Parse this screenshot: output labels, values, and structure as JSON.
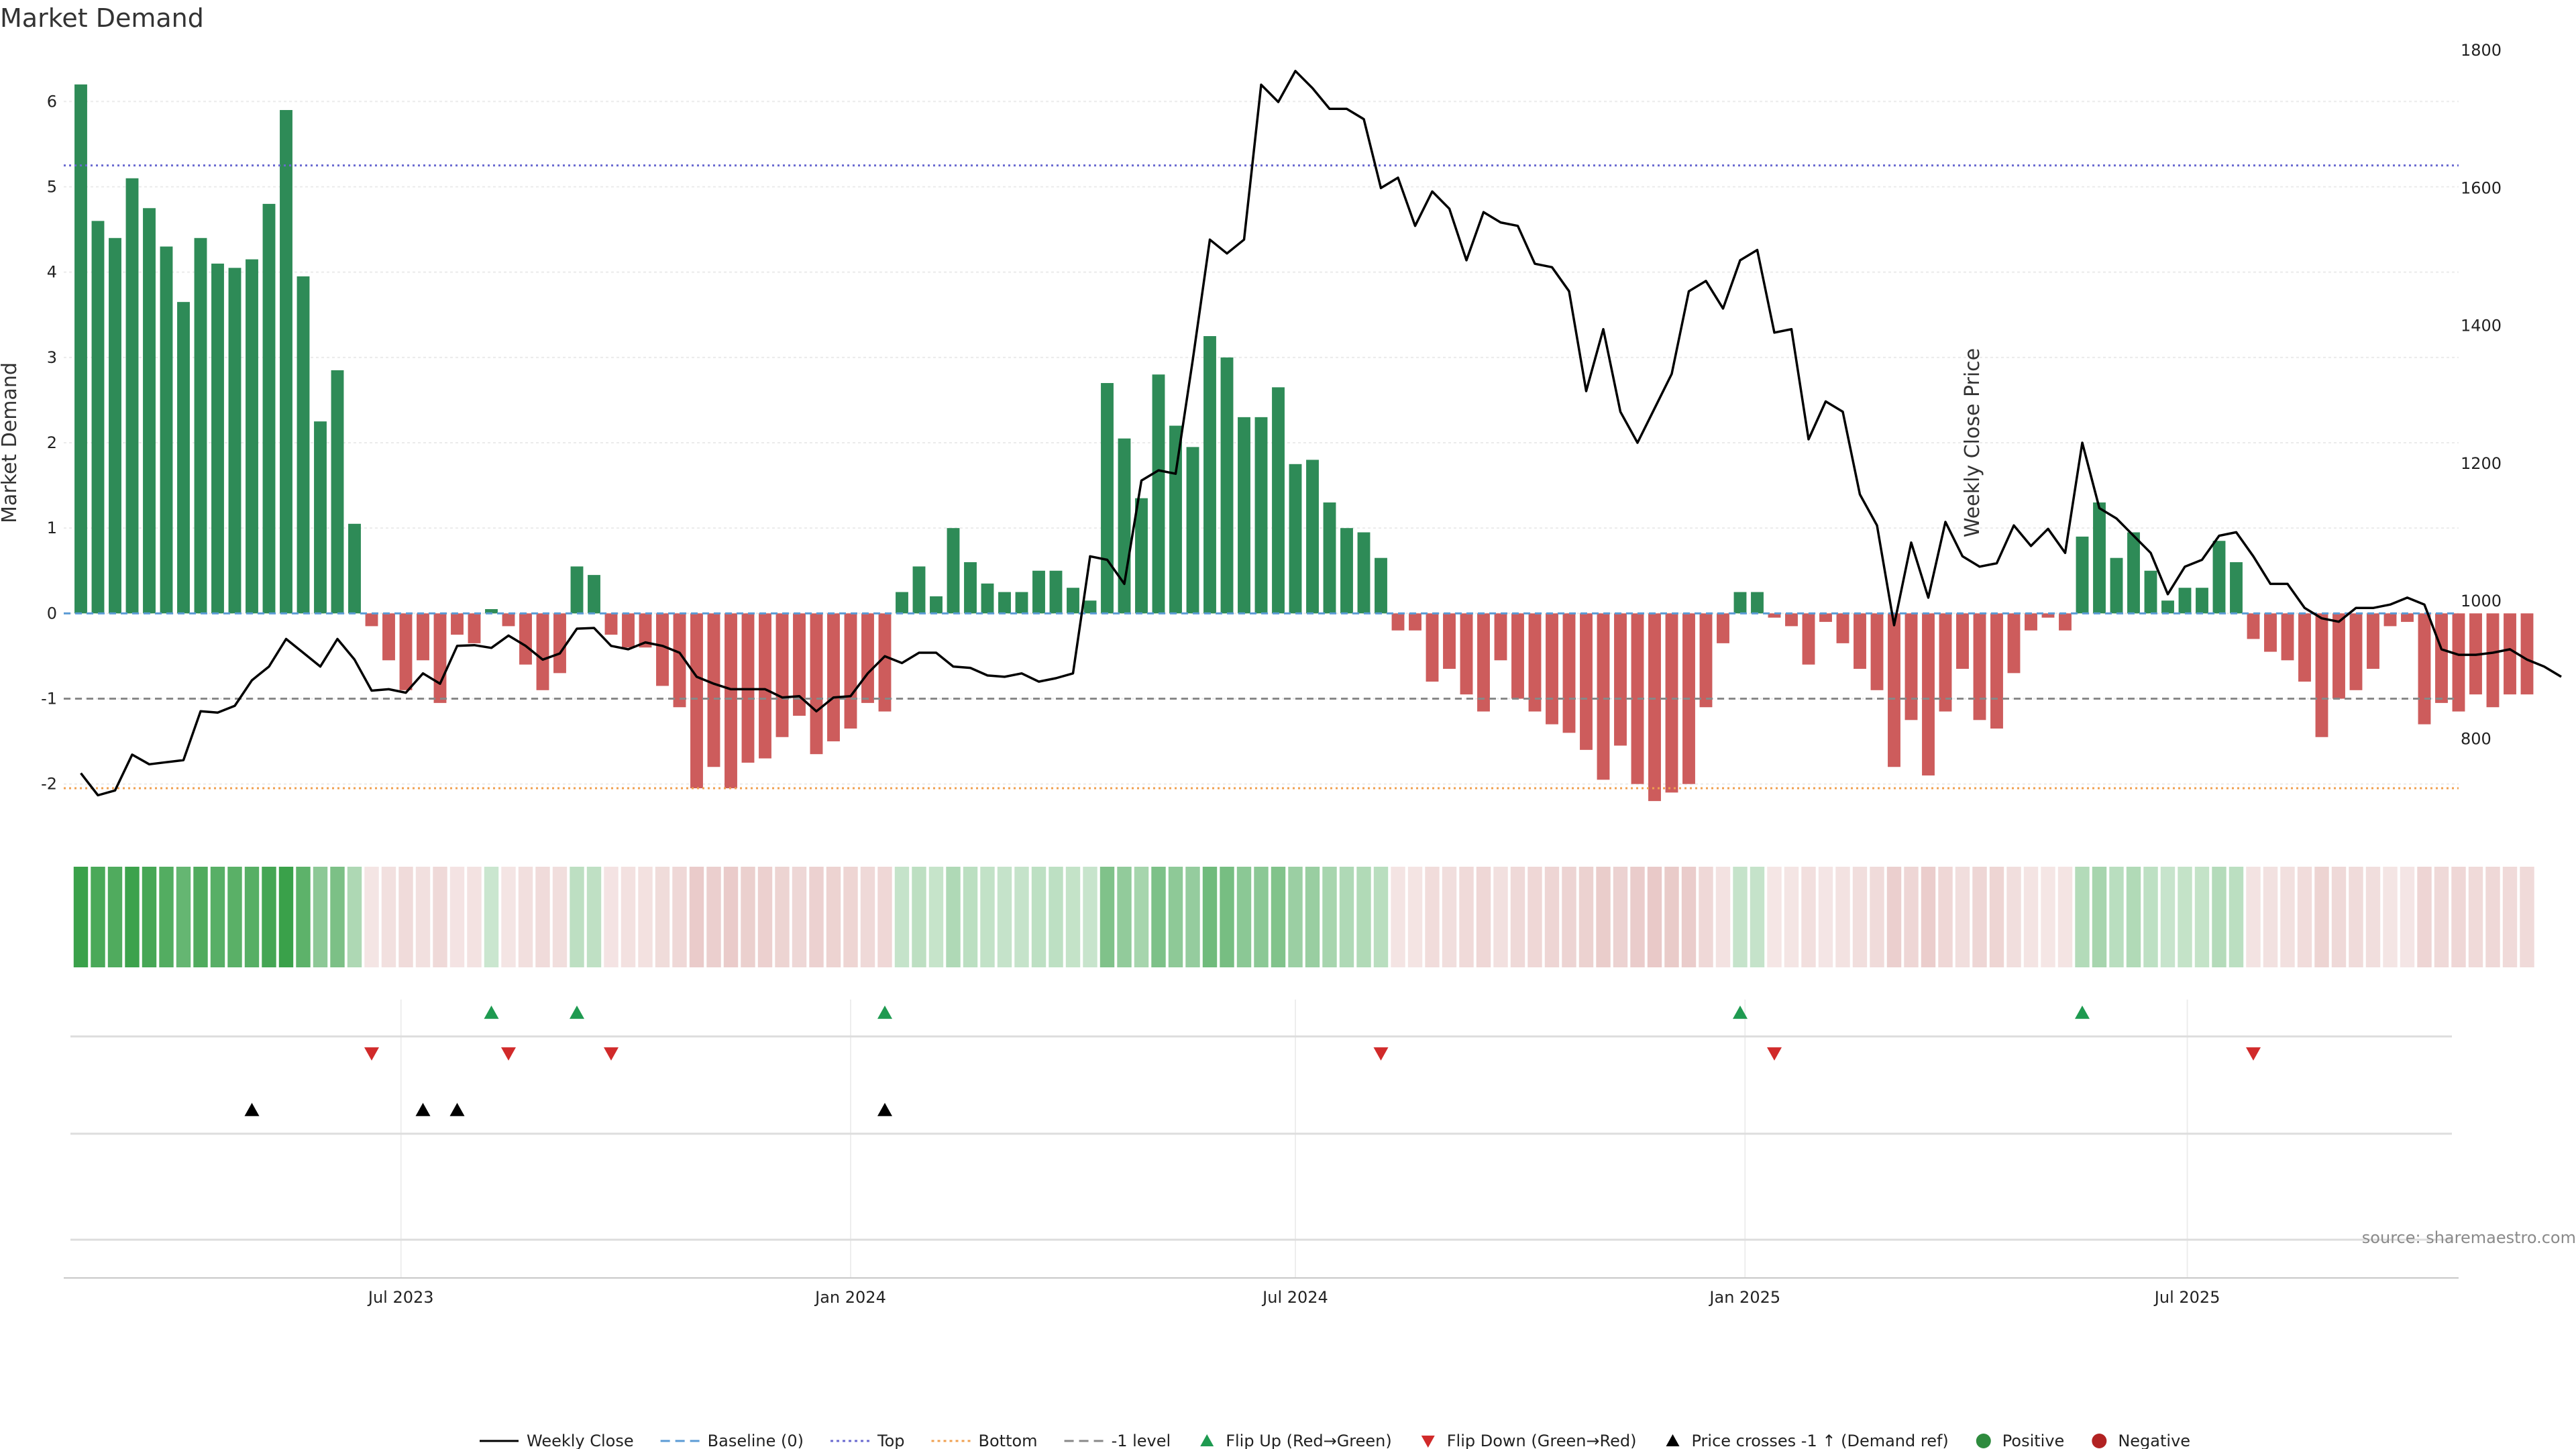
{
  "chart_data": {
    "type": "bar",
    "title": "Market Demand",
    "ylabel_left": "Market Demand",
    "ylabel_right": "Weekly Close Price",
    "source": "source: sharemaestro.com",
    "left_axis": {
      "range": [
        -2.6,
        6.6
      ],
      "ticks": [
        -2,
        -1,
        0,
        1,
        2,
        3,
        4,
        5,
        6
      ]
    },
    "right_axis": {
      "range": [
        660,
        1800
      ],
      "ticks": [
        800,
        1000,
        1200,
        1400,
        1600,
        1800
      ]
    },
    "x_range": [
      "2023-02-13",
      "2025-10-20"
    ],
    "x_ticks": [
      {
        "date": "2023-07-01",
        "label": "Jul 2023"
      },
      {
        "date": "2024-01-01",
        "label": "Jan 2024"
      },
      {
        "date": "2024-07-01",
        "label": "Jul 2024"
      },
      {
        "date": "2025-01-01",
        "label": "Jan 2025"
      },
      {
        "date": "2025-07-01",
        "label": "Jul 2025"
      }
    ],
    "first_week": "2023-02-20",
    "reference_lines": [
      {
        "name": "Baseline (0)",
        "value": 0,
        "color": "#5b9bd5",
        "style": "dashed"
      },
      {
        "name": "Top",
        "value": 5.25,
        "color": "#6a6ad0",
        "style": "dotted"
      },
      {
        "name": "Bottom",
        "value": -2.05,
        "color": "#f0a050",
        "style": "dotted"
      },
      {
        "name": "-1 level",
        "value": -1,
        "color": "#888888",
        "style": "dashed"
      }
    ],
    "demand": [
      6.2,
      4.6,
      4.4,
      5.1,
      4.75,
      4.3,
      3.65,
      4.4,
      4.1,
      4.05,
      4.15,
      4.8,
      5.9,
      3.95,
      2.25,
      2.85,
      1.05,
      -0.15,
      -0.55,
      -0.9,
      -0.55,
      -1.05,
      -0.25,
      -0.35,
      0.05,
      -0.15,
      -0.6,
      -0.9,
      -0.7,
      0.55,
      0.45,
      -0.25,
      -0.4,
      -0.4,
      -0.85,
      -1.1,
      -2.05,
      -1.8,
      -2.05,
      -1.75,
      -1.7,
      -1.45,
      -1.2,
      -1.65,
      -1.5,
      -1.35,
      -1.05,
      -1.15,
      0.25,
      0.55,
      0.2,
      1.0,
      0.6,
      0.35,
      0.25,
      0.25,
      0.5,
      0.5,
      0.3,
      0.15,
      2.7,
      2.05,
      1.35,
      2.8,
      2.2,
      1.95,
      3.25,
      3.0,
      2.3,
      2.3,
      2.65,
      1.75,
      1.8,
      1.3,
      1.0,
      0.95,
      0.65,
      -0.2,
      -0.2,
      -0.8,
      -0.65,
      -0.95,
      -1.15,
      -0.55,
      -1.0,
      -1.15,
      -1.3,
      -1.4,
      -1.6,
      -1.95,
      -1.55,
      -2.0,
      -2.2,
      -2.1,
      -2.0,
      -1.1,
      -0.35,
      0.25,
      0.25,
      -0.05,
      -0.15,
      -0.6,
      -0.1,
      -0.35,
      -0.65,
      -0.9,
      -1.8,
      -1.25,
      -1.9,
      -1.15,
      -0.65,
      -1.25,
      -1.35,
      -0.7,
      -0.2,
      -0.05,
      -0.2,
      0.9,
      1.3,
      0.65,
      0.95,
      0.5,
      0.15,
      0.3,
      0.3,
      0.85,
      0.6,
      -0.3,
      -0.45,
      -0.55,
      -0.8,
      -1.45,
      -1.0,
      -0.9,
      -0.65,
      -0.15,
      -0.1,
      -1.3,
      -1.05,
      -1.15,
      -0.95,
      -1.1,
      -0.95,
      -0.95
    ],
    "weekly_close": [
      750,
      718,
      725,
      777,
      763,
      766,
      769,
      840,
      838,
      848,
      885,
      905,
      945,
      925,
      905,
      945,
      915,
      870,
      872,
      867,
      895,
      880,
      935,
      936,
      932,
      950,
      935,
      915,
      924,
      960,
      961,
      935,
      930,
      940,
      935,
      925,
      890,
      880,
      872,
      872,
      872,
      860,
      862,
      840,
      860,
      862,
      895,
      920,
      910,
      925,
      925,
      905,
      903,
      892,
      890,
      895,
      883,
      888,
      895,
      1065,
      1060,
      1025,
      1175,
      1190,
      1185,
      1350,
      1525,
      1505,
      1525,
      1750,
      1725,
      1770,
      1745,
      1715,
      1715,
      1700,
      1600,
      1615,
      1545,
      1595,
      1570,
      1495,
      1565,
      1550,
      1545,
      1490,
      1485,
      1450,
      1305,
      1395,
      1275,
      1230,
      1280,
      1330,
      1450,
      1465,
      1425,
      1495,
      1510,
      1390,
      1395,
      1235,
      1290,
      1275,
      1155,
      1110,
      965,
      1085,
      1005,
      1115,
      1065,
      1050,
      1055,
      1110,
      1080,
      1105,
      1070,
      1230,
      1135,
      1120,
      1095,
      1070,
      1010,
      1050,
      1060,
      1095,
      1100,
      1065,
      1025,
      1025,
      990,
      975,
      970,
      990,
      990,
      995,
      1005,
      995,
      930,
      922,
      922,
      925,
      930,
      915,
      905,
      890
    ],
    "flip_up_weeks": [
      24,
      29,
      47,
      97,
      117
    ],
    "flip_down_weeks": [
      17,
      25,
      31,
      76,
      99,
      127
    ],
    "price_cross_weeks": [
      10,
      20,
      22,
      47
    ],
    "legend": [
      {
        "label": "Weekly Close",
        "kind": "line",
        "color": "#000000"
      },
      {
        "label": "Baseline (0)",
        "kind": "dash",
        "color": "#5b9bd5"
      },
      {
        "label": "Top",
        "kind": "dot",
        "color": "#6a6ad0"
      },
      {
        "label": "Bottom",
        "kind": "dot",
        "color": "#f0a050"
      },
      {
        "label": "-1 level",
        "kind": "dash",
        "color": "#888888"
      },
      {
        "label": "Flip Up (Red→Green)",
        "kind": "tri-up",
        "color": "#1e9a50"
      },
      {
        "label": "Flip Down (Green→Red)",
        "kind": "tri-down",
        "color": "#d12a2a"
      },
      {
        "label": "Price crosses -1 ↑ (Demand ref)",
        "kind": "tri-up",
        "color": "#000000"
      },
      {
        "label": "Positive",
        "kind": "circle",
        "color": "#2e8b3e"
      },
      {
        "label": "Negative",
        "kind": "circle",
        "color": "#b22222"
      }
    ],
    "colors": {
      "positive_bar": "#2e8b57",
      "negative_bar": "#cd5c5c",
      "strip_positive": "#3aa14a",
      "strip_negative": "#c87a76",
      "flip_up": "#1e9a50",
      "flip_down": "#d12a2a",
      "cross": "#000000",
      "price_line": "#000000"
    }
  }
}
